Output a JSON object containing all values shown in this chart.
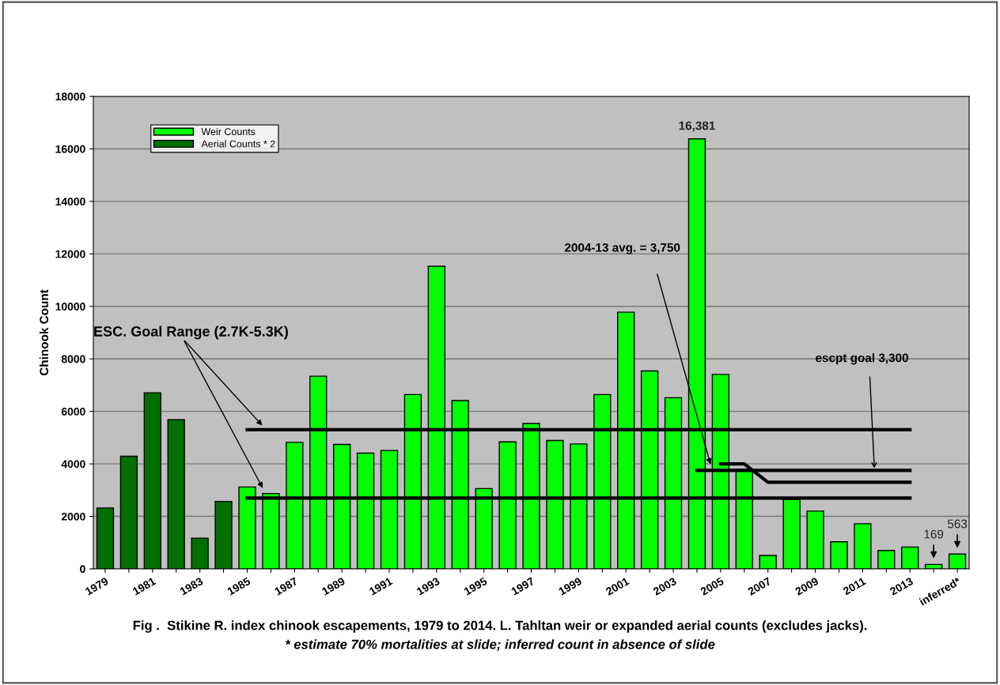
{
  "chart_data": {
    "type": "bar",
    "ylabel": "Chinook Count",
    "categories": [
      "1979",
      null,
      "1981",
      null,
      "1983",
      null,
      "1985",
      null,
      "1987",
      null,
      "1989",
      null,
      "1991",
      null,
      "1993",
      null,
      "1995",
      null,
      "1997",
      null,
      "1999",
      null,
      "2001",
      null,
      "2003",
      null,
      "2005",
      null,
      "2007",
      null,
      "2009",
      null,
      "2011",
      null,
      "2013",
      null,
      "inferred*"
    ],
    "series": [
      {
        "name": "Weir Counts",
        "color": "#00ff00",
        "values": [
          null,
          null,
          null,
          null,
          null,
          null,
          3120,
          2870,
          4820,
          7340,
          4740,
          4410,
          4510,
          6640,
          11530,
          6410,
          3060,
          4840,
          5540,
          4890,
          4760,
          6640,
          9780,
          7540,
          6520,
          16381,
          7410,
          3800,
          510,
          2650,
          2200,
          1030,
          1720,
          700,
          830,
          169,
          563
        ],
        "value_labels": [
          null,
          null,
          null,
          null,
          null,
          null,
          null,
          null,
          null,
          null,
          null,
          null,
          null,
          null,
          null,
          null,
          null,
          null,
          null,
          null,
          null,
          null,
          null,
          null,
          null,
          "16,381",
          null,
          null,
          null,
          null,
          null,
          null,
          null,
          null,
          null,
          "169",
          "563"
        ]
      },
      {
        "name": "Aerial Counts * 2",
        "color": "#006f00",
        "values": [
          2320,
          4290,
          6710,
          5680,
          1170,
          2570,
          null,
          null,
          null,
          null,
          null,
          null,
          null,
          null,
          null,
          null,
          null,
          null,
          null,
          null,
          null,
          null,
          null,
          null,
          null,
          null,
          null,
          null,
          null,
          null,
          null,
          null,
          null,
          null,
          null,
          null,
          null
        ]
      },
      {
        "type": "line",
        "color": "#000000",
        "values": [
          null,
          null,
          null,
          null,
          null,
          null,
          5300,
          5300,
          5300,
          5300,
          5300,
          5300,
          5300,
          5300,
          5300,
          5300,
          5300,
          5300,
          5300,
          5300,
          5300,
          5300,
          5300,
          5300,
          5300,
          5300,
          5300,
          5300,
          5300,
          5300,
          5300,
          5300,
          5300,
          5300,
          5300,
          null,
          null
        ]
      },
      {
        "type": "line",
        "color": "#000000",
        "values": [
          null,
          null,
          null,
          null,
          null,
          null,
          2700,
          2700,
          2700,
          2700,
          2700,
          2700,
          2700,
          2700,
          2700,
          2700,
          2700,
          2700,
          2700,
          2700,
          2700,
          2700,
          2700,
          2700,
          2700,
          2700,
          2700,
          2700,
          2700,
          2700,
          2700,
          2700,
          2700,
          2700,
          2700,
          null,
          null
        ]
      },
      {
        "type": "line",
        "color": "#000000",
        "values": [
          null,
          null,
          null,
          null,
          null,
          null,
          null,
          null,
          null,
          null,
          null,
          null,
          null,
          null,
          null,
          null,
          null,
          null,
          null,
          null,
          null,
          null,
          null,
          null,
          null,
          3750,
          3750,
          3750,
          3750,
          3750,
          3750,
          3750,
          3750,
          3750,
          3750,
          null,
          null
        ]
      },
      {
        "type": "line",
        "color": "#000000",
        "values": [
          null,
          null,
          null,
          null,
          null,
          null,
          null,
          null,
          null,
          null,
          null,
          null,
          null,
          null,
          null,
          null,
          null,
          null,
          null,
          null,
          null,
          null,
          null,
          null,
          null,
          null,
          4000,
          4000,
          3300,
          3300,
          3300,
          3300,
          3300,
          3300,
          3300,
          null,
          null
        ]
      }
    ],
    "ylim": [
      0,
      18000
    ],
    "yticks": [
      0,
      2000,
      4000,
      6000,
      8000,
      10000,
      12000,
      14000,
      16000,
      18000
    ],
    "grid": "y",
    "legend": "top left",
    "annotations": [
      "ESC. Goal Range (2.7K-5.3K)",
      "2004-13 avg. = 3,750",
      "escpt goal 3,300",
      "Fig .  Stikine R. index chinook escapements, 1979 to 2014. L. Tahltan weir or expanded aerial counts (excludes jacks).",
      "* estimate 70% mortalities at slide; inferred count in absence of slide"
    ]
  }
}
